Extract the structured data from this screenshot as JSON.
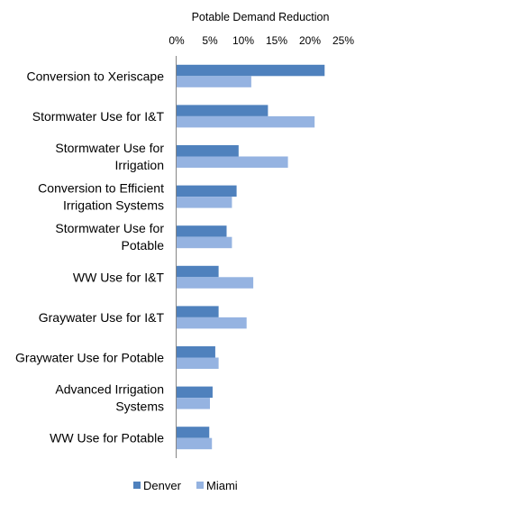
{
  "chart_data": {
    "type": "bar",
    "orientation": "horizontal",
    "title": "Potable Demand Reduction",
    "x_axis_position": "top",
    "xlim": [
      0,
      0.25
    ],
    "x_ticks": [
      0,
      0.05,
      0.1,
      0.15,
      0.2,
      0.25
    ],
    "x_tick_labels": [
      "0%",
      "5%",
      "10%",
      "15%",
      "20%",
      "25%"
    ],
    "grid": false,
    "legend_position": "bottom",
    "categories": [
      "Conversion to Xeriscape",
      "Stormwater Use for I&T",
      "Stormwater Use for Irrigation",
      "Conversion to Efficient Irrigation Systems",
      "Stormwater Use for Potable",
      "WW Use for I&T",
      "Graywater Use for I&T",
      "Graywater Use for Potable",
      "Advanced Irrigation Systems",
      "WW Use for Potable"
    ],
    "category_label_lines": [
      [
        "Conversion to Xeriscape"
      ],
      [
        "Stormwater Use for I&T"
      ],
      [
        "Stormwater Use for",
        "Irrigation"
      ],
      [
        "Conversion to Efficient",
        "Irrigation Systems"
      ],
      [
        "Stormwater Use for",
        "Potable"
      ],
      [
        "WW Use for I&T"
      ],
      [
        "Graywater Use for I&T"
      ],
      [
        "Graywater Use for Potable"
      ],
      [
        "Advanced Irrigation",
        "Systems"
      ],
      [
        "WW Use for Potable"
      ]
    ],
    "series": [
      {
        "name": "Denver",
        "color": "#4f81bd",
        "values": [
          0.222,
          0.137,
          0.093,
          0.09,
          0.075,
          0.063,
          0.063,
          0.058,
          0.054,
          0.049
        ]
      },
      {
        "name": "Miami",
        "color": "#95b3e1",
        "values": [
          0.112,
          0.207,
          0.167,
          0.083,
          0.083,
          0.115,
          0.105,
          0.063,
          0.05,
          0.053
        ]
      }
    ]
  }
}
